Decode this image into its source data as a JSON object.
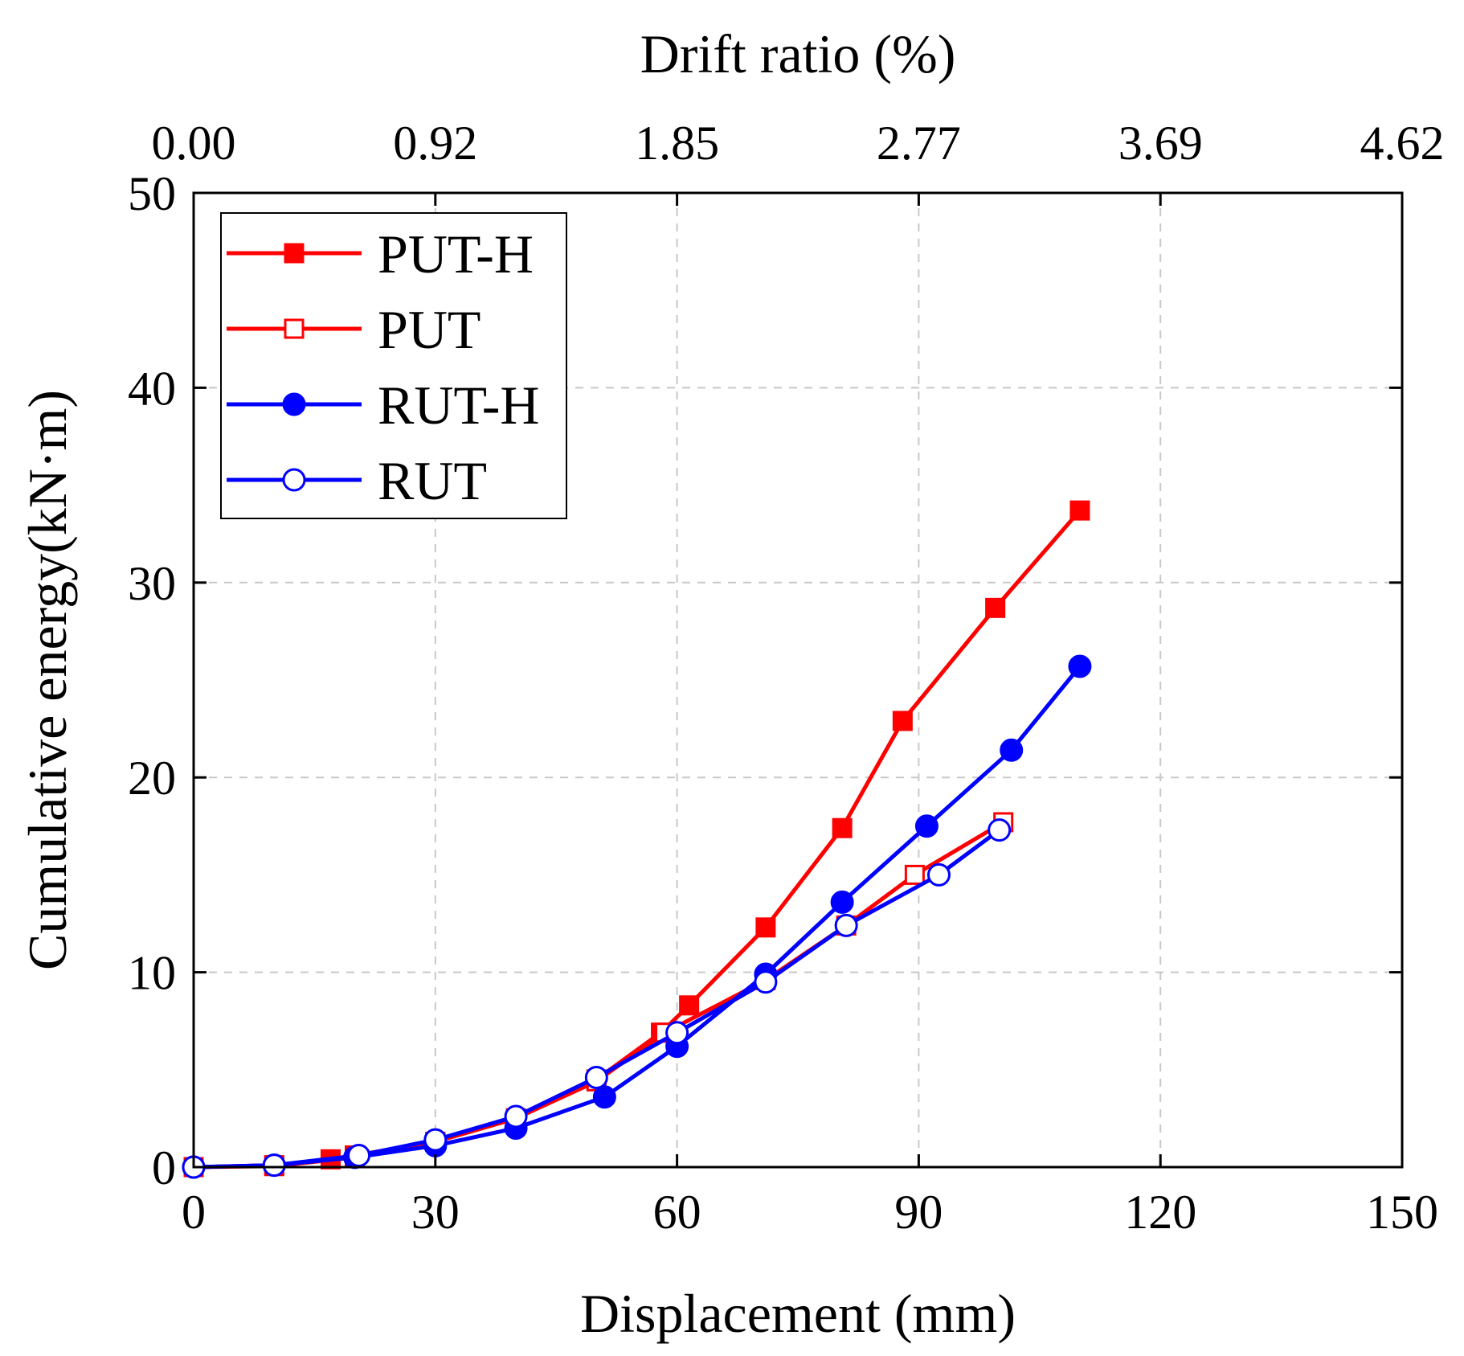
{
  "chart_data": {
    "type": "line",
    "title": "",
    "xlabel": "Displacement (mm)",
    "ylabel": "Cumulative energy(kN·m)",
    "x2label": "Drift ratio (%)",
    "xlim": [
      0,
      150
    ],
    "ylim": [
      0,
      50
    ],
    "xticks": [
      0,
      30,
      60,
      90,
      120,
      150
    ],
    "xtick_labels": [
      "0",
      "30",
      "60",
      "90",
      "120",
      "150"
    ],
    "yticks": [
      0,
      10,
      20,
      30,
      40,
      50
    ],
    "ytick_labels": [
      "0",
      "10",
      "20",
      "30",
      "40",
      "50"
    ],
    "x2tick_labels": [
      "0.00",
      "0.92",
      "1.85",
      "2.77",
      "3.69",
      "4.62"
    ],
    "grid": true,
    "legend_position": "top-left",
    "series": [
      {
        "name": "PUT-H",
        "color": "#ff0000",
        "marker": "square-filled",
        "x": [
          0,
          10,
          17,
          20,
          30,
          40,
          50,
          58,
          61.5,
          71,
          80.5,
          88,
          99.5,
          110
        ],
        "y": [
          0,
          0.1,
          0.4,
          0.6,
          1.3,
          2.5,
          4.5,
          6.9,
          8.3,
          12.3,
          17.4,
          22.9,
          28.7,
          33.7
        ]
      },
      {
        "name": "PUT",
        "color": "#ff0000",
        "marker": "square-open",
        "x": [
          0,
          10,
          20,
          30,
          40,
          50,
          58.5,
          71,
          81,
          89.5,
          100.5
        ],
        "y": [
          0,
          0.05,
          0.5,
          1.3,
          2.5,
          4.4,
          6.9,
          9.6,
          12.4,
          15.0,
          17.7
        ]
      },
      {
        "name": "RUT-H",
        "color": "#0000ff",
        "marker": "circle-filled",
        "x": [
          0,
          10,
          20,
          30,
          40,
          51,
          60,
          71,
          80.5,
          91,
          101.5,
          110
        ],
        "y": [
          0,
          0.1,
          0.5,
          1.1,
          2.0,
          3.6,
          6.2,
          9.9,
          13.6,
          17.5,
          21.4,
          25.7
        ]
      },
      {
        "name": "RUT",
        "color": "#0000ff",
        "marker": "circle-open",
        "x": [
          0,
          10,
          20.5,
          30,
          40,
          50,
          60,
          71,
          81,
          92.5,
          100
        ],
        "y": [
          0,
          0.1,
          0.6,
          1.4,
          2.6,
          4.6,
          6.9,
          9.5,
          12.4,
          15.0,
          17.3
        ]
      }
    ]
  }
}
